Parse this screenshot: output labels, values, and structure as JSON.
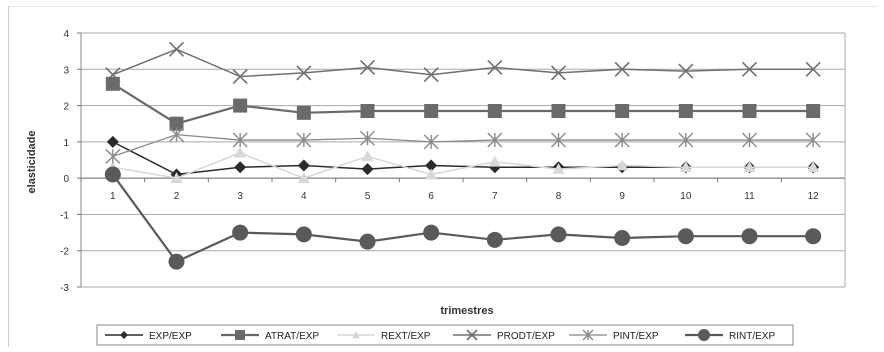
{
  "chart_data": {
    "type": "line",
    "xlabel": "trimestres",
    "ylabel": "elasticidade",
    "x": [
      1,
      2,
      3,
      4,
      5,
      6,
      7,
      8,
      9,
      10,
      11,
      12
    ],
    "ylim": [
      -3,
      4
    ],
    "yticks": [
      -3,
      -2,
      -1,
      0,
      1,
      2,
      3,
      4
    ],
    "grid": true,
    "legend_position": "bottom",
    "series": [
      {
        "name": "EXP/EXP",
        "marker": "diamond",
        "color": "#2b2b2b",
        "values": [
          1.0,
          0.1,
          0.3,
          0.35,
          0.25,
          0.35,
          0.3,
          0.3,
          0.3,
          0.3,
          0.3,
          0.3
        ]
      },
      {
        "name": "ATRAT/EXP",
        "marker": "square",
        "color": "#6a6a6a",
        "values": [
          2.6,
          1.5,
          2.0,
          1.8,
          1.85,
          1.85,
          1.85,
          1.85,
          1.85,
          1.85,
          1.85,
          1.85
        ]
      },
      {
        "name": "REXT/EXP",
        "marker": "triangle",
        "color": "#d8d8d8",
        "values": [
          0.3,
          0.0,
          0.7,
          0.0,
          0.6,
          0.1,
          0.45,
          0.25,
          0.35,
          0.3,
          0.3,
          0.3
        ]
      },
      {
        "name": "PRODT/EXP",
        "marker": "x",
        "color": "#707070",
        "values": [
          2.85,
          3.55,
          2.8,
          2.9,
          3.05,
          2.85,
          3.05,
          2.9,
          3.0,
          2.95,
          3.0,
          3.0
        ]
      },
      {
        "name": "PINT/EXP",
        "marker": "star",
        "color": "#8a8a8a",
        "values": [
          0.6,
          1.2,
          1.05,
          1.05,
          1.1,
          1.0,
          1.05,
          1.05,
          1.05,
          1.05,
          1.05,
          1.05
        ]
      },
      {
        "name": "RINT/EXP",
        "marker": "circle",
        "color": "#5a5a5a",
        "values": [
          0.1,
          -2.3,
          -1.5,
          -1.55,
          -1.75,
          -1.5,
          -1.7,
          -1.55,
          -1.65,
          -1.6,
          -1.6,
          -1.6
        ]
      }
    ]
  }
}
